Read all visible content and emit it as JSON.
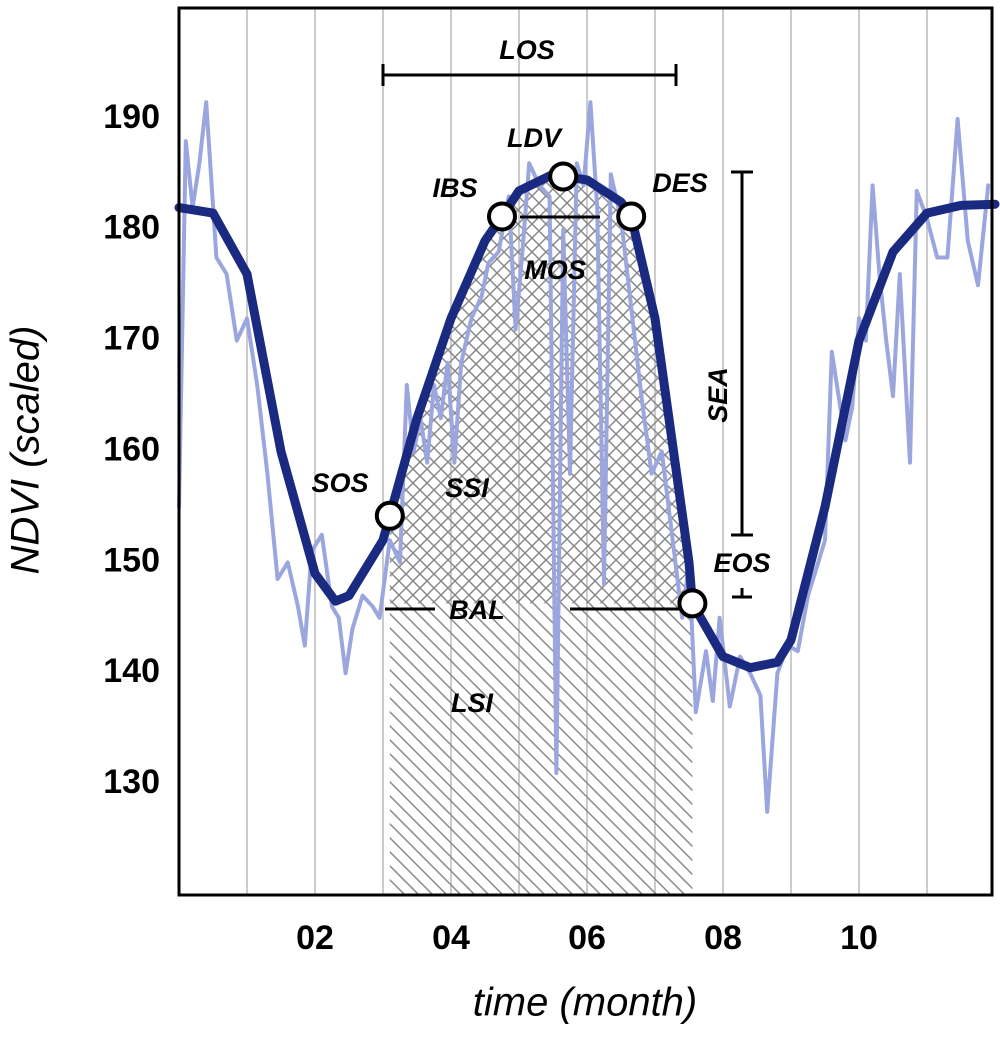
{
  "chart_data": {
    "type": "line",
    "xlabel": "time (month)",
    "ylabel": "NDVI (scaled)",
    "xlim": [
      0,
      12
    ],
    "ylim": [
      120,
      200
    ],
    "xticks": [
      {
        "value": 2,
        "label": "02"
      },
      {
        "value": 4,
        "label": "04"
      },
      {
        "value": 6,
        "label": "06"
      },
      {
        "value": 8,
        "label": "08"
      },
      {
        "value": 10,
        "label": "10"
      }
    ],
    "x_minor_grid": [
      1,
      3,
      5,
      7,
      9,
      11
    ],
    "yticks": [
      130,
      140,
      150,
      160,
      170,
      180,
      190
    ],
    "grid": true,
    "series": [
      {
        "color": "#9aa6dd",
        "x": [
          0.0,
          0.1,
          0.2,
          0.3,
          0.4,
          0.55,
          0.7,
          0.85,
          1.0,
          1.15,
          1.3,
          1.45,
          1.6,
          1.75,
          1.85,
          1.95,
          2.1,
          2.25,
          2.35,
          2.45,
          2.55,
          2.7,
          2.85,
          2.95,
          3.1,
          3.25,
          3.35,
          3.45,
          3.55,
          3.65,
          3.75,
          3.85,
          3.95,
          4.05,
          4.15,
          4.3,
          4.45,
          4.55,
          4.7,
          4.85,
          4.95,
          5.05,
          5.15,
          5.3,
          5.45,
          5.55,
          5.65,
          5.75,
          5.85,
          5.95,
          6.05,
          6.15,
          6.25,
          6.35,
          6.5,
          6.65,
          6.8,
          6.95,
          7.1,
          7.3,
          7.4,
          7.5,
          7.6,
          7.75,
          7.85,
          7.95,
          8.1,
          8.25,
          8.4,
          8.55,
          8.65,
          8.8,
          8.95,
          9.1,
          9.25,
          9.4,
          9.5,
          9.6,
          9.7,
          9.8,
          9.9,
          10.0,
          10.1,
          10.2,
          10.3,
          10.4,
          10.5,
          10.6,
          10.75,
          10.85,
          11.0,
          11.15,
          11.3,
          11.45,
          11.6,
          11.75,
          11.9
        ],
        "values": [
          155,
          188,
          182,
          186,
          191.5,
          177.5,
          176,
          170,
          172,
          166,
          158,
          148.5,
          150,
          146,
          142.5,
          151,
          152.5,
          146,
          145,
          140,
          144,
          147,
          146,
          145,
          152,
          150,
          166,
          160,
          163,
          159,
          166,
          163,
          168,
          159,
          168,
          172,
          174,
          177,
          178,
          183,
          171,
          178,
          186,
          184,
          183,
          131,
          180,
          158,
          186,
          184,
          191.5,
          182,
          148,
          185,
          181,
          173,
          165,
          158,
          160,
          150,
          145,
          150,
          136.5,
          142,
          137.5,
          145,
          137,
          141.5,
          140,
          138,
          127.5,
          140,
          142.5,
          142,
          147,
          150,
          152,
          169,
          165,
          161,
          164,
          172,
          170,
          184,
          176,
          170,
          165,
          176,
          159,
          183.5,
          181,
          177.5,
          177.5,
          190,
          179,
          175,
          184
        ]
      },
      {
        "color": "#1a2a80",
        "x": [
          0,
          0.5,
          1.0,
          1.5,
          2.0,
          2.3,
          2.5,
          3.0,
          3.1,
          3.5,
          4.0,
          4.5,
          4.75,
          5.0,
          5.5,
          5.65,
          6.0,
          6.5,
          6.65,
          7.0,
          7.5,
          7.55,
          8.0,
          8.4,
          8.8,
          9.0,
          9.5,
          10.0,
          10.5,
          11.0,
          11.5,
          12.0
        ],
        "values": [
          182,
          181.5,
          176,
          160,
          149,
          146.5,
          147,
          152,
          154.2,
          163,
          172,
          179,
          181.2,
          183.5,
          185,
          184.8,
          184.5,
          182.5,
          181.2,
          172,
          150,
          146.3,
          141.5,
          140.5,
          141,
          143,
          155,
          170,
          178,
          181.5,
          182.2,
          182.3
        ]
      }
    ],
    "points": [
      {
        "label": "SOS",
        "x": 3.1,
        "y": 154.2
      },
      {
        "label": "IBS",
        "x": 4.75,
        "y": 181.2
      },
      {
        "label": "LDV",
        "x": 5.65,
        "y": 184.8
      },
      {
        "label": "DES",
        "x": 6.65,
        "y": 181.2
      },
      {
        "label": "EOS",
        "x": 7.55,
        "y": 146.3
      }
    ],
    "annotations": [
      "LOS",
      "MOS",
      "SSI",
      "BAL",
      "LSI",
      "SEA"
    ]
  }
}
